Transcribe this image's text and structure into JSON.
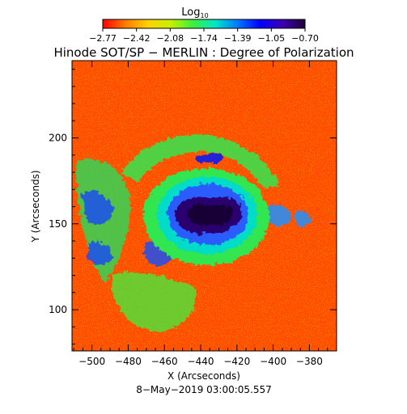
{
  "chart_data": {
    "type": "heatmap",
    "title": "Hinode SOT/SP − MERLIN : Degree of Polarization",
    "colorbar": {
      "label_main": "Log",
      "label_sub": "10",
      "ticks": [
        "−2.77",
        "−2.42",
        "−2.08",
        "−1.74",
        "−1.39",
        "−1.05",
        "−0.70"
      ],
      "colormap": [
        "#ff0000",
        "#ff7a00",
        "#ffd200",
        "#c8f000",
        "#3cf03c",
        "#00e6c8",
        "#0078ff",
        "#0000ff",
        "#3c00b4",
        "#1e0032"
      ]
    },
    "xlabel": "X (Arcseconds)",
    "ylabel": "Y (Arcseconds)",
    "x_ticks": [
      -500,
      -480,
      -460,
      -440,
      -420,
      -400,
      -380
    ],
    "y_ticks": [
      100,
      150,
      200
    ],
    "xlim": [
      -511,
      -365
    ],
    "ylim": [
      76,
      245
    ],
    "date": "8−May−2019 03:00:05.557",
    "features": [
      {
        "name": "sunspot umbra",
        "x": -440,
        "y": 154,
        "log_value": -0.7
      },
      {
        "name": "plage arc north",
        "x": -440,
        "y": 190,
        "log_value": -1.6
      },
      {
        "name": "plage band west",
        "x": -490,
        "y": 145,
        "log_value": -1.7
      }
    ]
  }
}
